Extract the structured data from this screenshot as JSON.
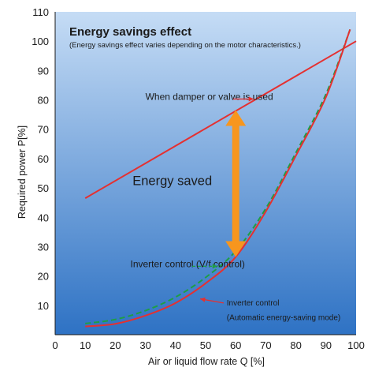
{
  "chart_data": {
    "type": "line",
    "title": "Energy savings effect",
    "subtitle": "(Energy savings effect varies depending on the motor characteristics.)",
    "xlabel": "Air or liquid flow rate Q [%]",
    "ylabel": "Required power P[%]",
    "xlim": [
      0,
      100
    ],
    "ylim": [
      0,
      110
    ],
    "xticks": [
      0,
      10,
      20,
      30,
      40,
      50,
      60,
      70,
      80,
      90,
      100
    ],
    "yticks": [
      10,
      20,
      30,
      40,
      50,
      60,
      70,
      80,
      90,
      100,
      110
    ],
    "grid": false,
    "series": [
      {
        "name": "When damper or valve is used",
        "style": "solid",
        "color": "#e53030",
        "x": [
          10,
          100
        ],
        "y": [
          46.5,
          100
        ]
      },
      {
        "name": "Inverter control (V/f control)",
        "style": "dashed",
        "color": "#1e9e45",
        "x": [
          10,
          20,
          30,
          40,
          50,
          60,
          70,
          80,
          90,
          98
        ],
        "y": [
          3.8,
          5.2,
          8.2,
          12.8,
          19.5,
          28.5,
          43,
          62,
          82,
          104
        ]
      },
      {
        "name": "Inverter control\n(Automatic energy-saving mode)",
        "style": "solid",
        "color": "#e53030",
        "x": [
          10,
          20,
          30,
          40,
          50,
          60,
          70,
          80,
          90,
          98
        ],
        "y": [
          2.8,
          3.7,
          6.5,
          10.8,
          17.5,
          26.5,
          42,
          61,
          81,
          104
        ]
      }
    ],
    "annotations": [
      {
        "text": "When damper or valve is used",
        "x": 30,
        "y": 80
      },
      {
        "text": "Energy saved",
        "x": 43,
        "y": 51
      },
      {
        "text": "Inverter control (V/f control)",
        "x": 25,
        "y": 23
      },
      {
        "text": "Inverter control",
        "x": 57,
        "y": 10
      },
      {
        "text": "(Automatic energy-saving mode)",
        "x": 57,
        "y": 5
      }
    ],
    "energy_saved_arrow": {
      "x": 60,
      "y_from": 26.5,
      "y_to": 76.5,
      "color": "#f7961e"
    },
    "background": {
      "top": "#c5dcf5",
      "bottom": "#2e72c4"
    }
  }
}
